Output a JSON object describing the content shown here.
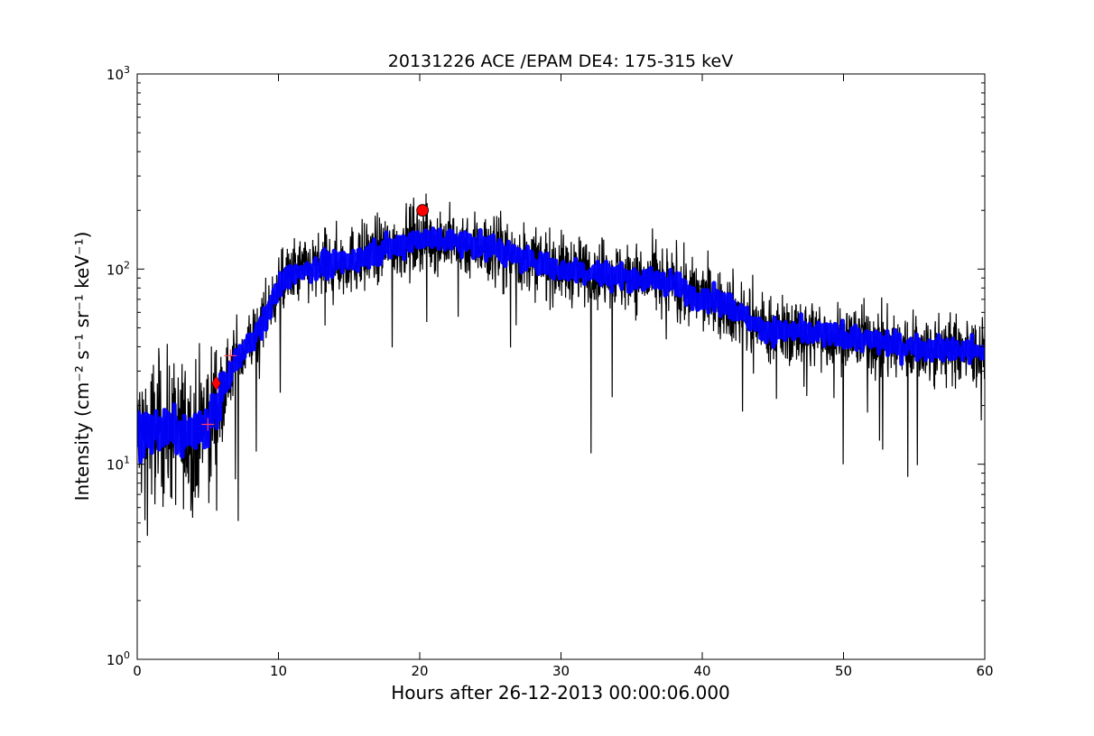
{
  "chart_data": {
    "type": "line",
    "title": "20131226 ACE /EPAM DE4: 175-315 keV",
    "xlabel": "Hours after 26-12-2013 00:00:06.000",
    "ylabel": "Intensity (cm⁻² s⁻¹ sr⁻¹ keV⁻¹)",
    "xlim": [
      0,
      60
    ],
    "ylim": [
      1,
      1000
    ],
    "yscale": "log",
    "grid": false,
    "x_ticks": [
      0,
      10,
      20,
      30,
      40,
      50,
      60
    ],
    "x_tick_labels": [
      "0",
      "10",
      "20",
      "30",
      "40",
      "50",
      "60"
    ],
    "y_ticks": [
      1,
      10,
      100,
      1000
    ],
    "y_tick_labels": [
      {
        "base": "10",
        "exp": "0"
      },
      {
        "base": "10",
        "exp": "1"
      },
      {
        "base": "10",
        "exp": "2"
      },
      {
        "base": "10",
        "exp": "3"
      }
    ],
    "series": [
      {
        "role": "raw",
        "color": "#000000",
        "envelope_x": [
          0,
          2,
          4,
          5,
          6,
          7,
          8,
          9,
          10,
          11,
          12,
          15,
          18,
          20,
          22,
          25,
          28,
          30,
          33,
          35,
          38,
          39,
          40,
          42,
          44,
          46,
          50,
          55,
          60
        ],
        "envelope_y": [
          14,
          15,
          14,
          16,
          23,
          34,
          42,
          55,
          80,
          95,
          100,
          110,
          130,
          145,
          140,
          130,
          110,
          100,
          95,
          90,
          85,
          75,
          72,
          65,
          50,
          48,
          45,
          40,
          37
        ]
      },
      {
        "role": "smoothed",
        "color": "#0000ff",
        "x": [
          0,
          2,
          4,
          5,
          6,
          7,
          8,
          9,
          10,
          11,
          12,
          15,
          18,
          20,
          22,
          25,
          28,
          30,
          33,
          35,
          38,
          39,
          40,
          42,
          44,
          46,
          50,
          55,
          60
        ],
        "y": [
          14,
          15,
          14,
          16,
          23,
          34,
          42,
          55,
          80,
          95,
          100,
          110,
          130,
          145,
          140,
          130,
          110,
          100,
          95,
          90,
          85,
          75,
          72,
          65,
          50,
          48,
          45,
          40,
          37
        ]
      }
    ],
    "markers": [
      {
        "shape": "plus",
        "x": 5.0,
        "y": 16,
        "color": "#ff4466"
      },
      {
        "shape": "diamond",
        "x": 5.6,
        "y": 26,
        "color": "#ff0000"
      },
      {
        "shape": "plus",
        "x": 6.6,
        "y": 36,
        "color": "#ff4466"
      },
      {
        "shape": "circle",
        "x": 20.2,
        "y": 200,
        "color": "#ff0000"
      }
    ]
  }
}
